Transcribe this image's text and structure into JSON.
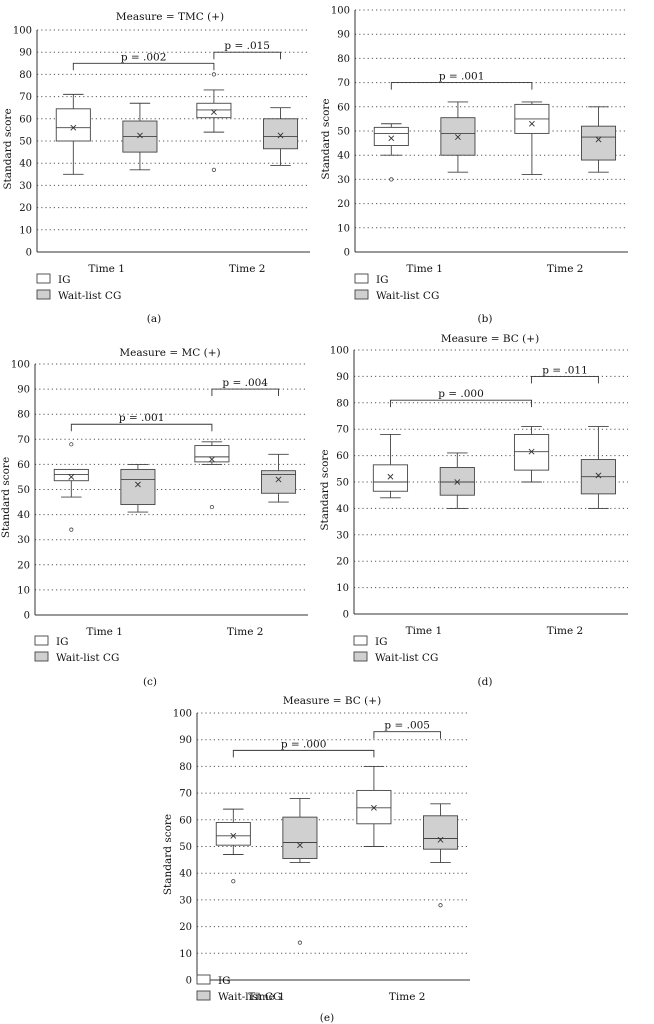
{
  "chart_data": [
    {
      "type": "box",
      "panel_label": "(a)",
      "title": "Measure = TMC (+)",
      "ylabel": "Standard score",
      "ylim": [
        0,
        100
      ],
      "yticks": [
        0,
        10,
        20,
        30,
        40,
        50,
        60,
        70,
        80,
        90,
        100
      ],
      "grid": true,
      "categories": [
        "Time 1",
        "Time 2"
      ],
      "legend": {
        "position": "bottom-left",
        "entries": [
          "IG",
          "Wait-list CG"
        ]
      },
      "series": [
        {
          "legend": "IG",
          "color": "#ffffff",
          "boxes": [
            {
              "min": 35,
              "q1": 50,
              "median": 56,
              "q3": 64.5,
              "max": 71,
              "mean": 56,
              "outliers": []
            },
            {
              "min": 54,
              "q1": 60.5,
              "median": 64,
              "q3": 67,
              "max": 73,
              "mean": 63,
              "outliers": [
                37,
                80
              ]
            }
          ]
        },
        {
          "legend": "Wait-list CG",
          "color": "#d0d0d0",
          "boxes": [
            {
              "min": 37,
              "q1": 45,
              "median": 52,
              "q3": 59,
              "max": 67,
              "mean": 52.5,
              "outliers": []
            },
            {
              "min": 39,
              "q1": 46.5,
              "median": 52,
              "q3": 60,
              "max": 65,
              "mean": 52.5,
              "outliers": []
            }
          ]
        }
      ],
      "annotations": [
        {
          "text": "p = .002",
          "from": [
            0,
            0
          ],
          "to": [
            1,
            0
          ],
          "y": 85
        },
        {
          "text": "p = .015",
          "from": [
            1,
            0
          ],
          "to": [
            1,
            1
          ],
          "y": 90
        }
      ]
    },
    {
      "type": "box",
      "panel_label": "(b)",
      "title": "",
      "ylabel": "Standard score",
      "ylim": [
        0,
        100
      ],
      "yticks": [
        0,
        10,
        20,
        30,
        40,
        50,
        60,
        70,
        80,
        90,
        100
      ],
      "grid": true,
      "categories": [
        "Time 1",
        "Time 2"
      ],
      "legend": {
        "position": "bottom-left",
        "entries": [
          "IG",
          "Wait-list CG"
        ]
      },
      "series": [
        {
          "legend": "IG",
          "color": "#ffffff",
          "boxes": [
            {
              "min": 40,
              "q1": 44,
              "median": 49,
              "q3": 51.5,
              "max": 53,
              "mean": 47,
              "outliers": [
                30
              ]
            },
            {
              "min": 32,
              "q1": 49,
              "median": 55,
              "q3": 61,
              "max": 62,
              "mean": 53,
              "outliers": []
            }
          ]
        },
        {
          "legend": "Wait-list CG",
          "color": "#d0d0d0",
          "boxes": [
            {
              "min": 33,
              "q1": 40,
              "median": 49,
              "q3": 55.5,
              "max": 62,
              "mean": 47.5,
              "outliers": []
            },
            {
              "min": 33,
              "q1": 38,
              "median": 47.5,
              "q3": 52,
              "max": 60,
              "mean": 46.5,
              "outliers": []
            }
          ]
        }
      ],
      "annotations": [
        {
          "text": "p = .001",
          "from": [
            0,
            0
          ],
          "to": [
            1,
            0
          ],
          "y": 70
        }
      ]
    },
    {
      "type": "box",
      "panel_label": "(c)",
      "title": "Measure = MC (+)",
      "ylabel": "Standard score",
      "ylim": [
        0,
        100
      ],
      "yticks": [
        0,
        10,
        20,
        30,
        40,
        50,
        60,
        70,
        80,
        90,
        100
      ],
      "grid": true,
      "categories": [
        "Time 1",
        "Time 2"
      ],
      "legend": {
        "position": "bottom-left",
        "entries": [
          "IG",
          "Wait-list CG"
        ]
      },
      "series": [
        {
          "legend": "IG",
          "color": "#ffffff",
          "boxes": [
            {
              "min": 47,
              "q1": 53.5,
              "median": 56,
              "q3": 58,
              "max": 58,
              "mean": 55,
              "outliers": [
                34,
                68
              ]
            },
            {
              "min": 60,
              "q1": 61,
              "median": 63,
              "q3": 67.5,
              "max": 69,
              "mean": 62,
              "outliers": [
                43
              ]
            }
          ]
        },
        {
          "legend": "Wait-list CG",
          "color": "#d0d0d0",
          "boxes": [
            {
              "min": 41,
              "q1": 44,
              "median": 54,
              "q3": 58,
              "max": 60,
              "mean": 52,
              "outliers": []
            },
            {
              "min": 45,
              "q1": 48.5,
              "median": 56,
              "q3": 57.5,
              "max": 64,
              "mean": 54,
              "outliers": []
            }
          ]
        }
      ],
      "annotations": [
        {
          "text": "p = .001",
          "from": [
            0,
            0
          ],
          "to": [
            1,
            0
          ],
          "y": 76
        },
        {
          "text": "p = .004",
          "from": [
            1,
            0
          ],
          "to": [
            1,
            1
          ],
          "y": 90
        }
      ]
    },
    {
      "type": "box",
      "panel_label": "(d)",
      "title": "Measure = BC (+)",
      "ylabel": "Standard score",
      "ylim": [
        0,
        100
      ],
      "yticks": [
        0,
        10,
        20,
        30,
        40,
        50,
        60,
        70,
        80,
        90,
        100
      ],
      "grid": true,
      "categories": [
        "Time 1",
        "Time 2"
      ],
      "legend": {
        "position": "bottom-left",
        "entries": [
          "IG",
          "Wait-list CG"
        ]
      },
      "series": [
        {
          "legend": "IG",
          "color": "#ffffff",
          "boxes": [
            {
              "min": 44,
              "q1": 46.5,
              "median": 50,
              "q3": 56.5,
              "max": 68,
              "mean": 52,
              "outliers": []
            },
            {
              "min": 50,
              "q1": 54.5,
              "median": 61.5,
              "q3": 68,
              "max": 71,
              "mean": 61.5,
              "outliers": []
            }
          ]
        },
        {
          "legend": "Wait-list CG",
          "color": "#d0d0d0",
          "boxes": [
            {
              "min": 40,
              "q1": 45,
              "median": 50,
              "q3": 55.5,
              "max": 61,
              "mean": 50,
              "outliers": []
            },
            {
              "min": 40,
              "q1": 45.5,
              "median": 52,
              "q3": 58.5,
              "max": 71,
              "mean": 52.5,
              "outliers": []
            }
          ]
        }
      ],
      "annotations": [
        {
          "text": "p = .000",
          "from": [
            0,
            0
          ],
          "to": [
            1,
            0
          ],
          "y": 81
        },
        {
          "text": "p = .011",
          "from": [
            1,
            0
          ],
          "to": [
            1,
            1
          ],
          "y": 90
        }
      ]
    },
    {
      "type": "box",
      "panel_label": "(e)",
      "title": "Measure = BC (+)",
      "ylabel": "Standard score",
      "ylim": [
        0,
        100
      ],
      "yticks": [
        0,
        10,
        20,
        30,
        40,
        50,
        60,
        70,
        80,
        90,
        100
      ],
      "grid": true,
      "categories": [
        "Time 1",
        "Time 2"
      ],
      "legend": {
        "position": "bottom-left",
        "entries": [
          "IG",
          "Wait-list CG"
        ]
      },
      "series": [
        {
          "legend": "IG",
          "color": "#ffffff",
          "boxes": [
            {
              "min": 47,
              "q1": 50.5,
              "median": 54,
              "q3": 59,
              "max": 64,
              "mean": 54,
              "outliers": [
                37
              ]
            },
            {
              "min": 50,
              "q1": 58.5,
              "median": 64.5,
              "q3": 71,
              "max": 80,
              "mean": 64.5,
              "outliers": []
            }
          ]
        },
        {
          "legend": "Wait-list CG",
          "color": "#d0d0d0",
          "boxes": [
            {
              "min": 44,
              "q1": 45.5,
              "median": 51.5,
              "q3": 61,
              "max": 68,
              "mean": 50.5,
              "outliers": [
                14
              ]
            },
            {
              "min": 44,
              "q1": 49,
              "median": 53,
              "q3": 61.5,
              "max": 66,
              "mean": 52.5,
              "outliers": [
                28
              ]
            }
          ]
        }
      ],
      "annotations": [
        {
          "text": "p = .000",
          "from": [
            0,
            0
          ],
          "to": [
            1,
            0
          ],
          "y": 86
        },
        {
          "text": "p = .005",
          "from": [
            1,
            0
          ],
          "to": [
            1,
            1
          ],
          "y": 93
        }
      ]
    }
  ]
}
